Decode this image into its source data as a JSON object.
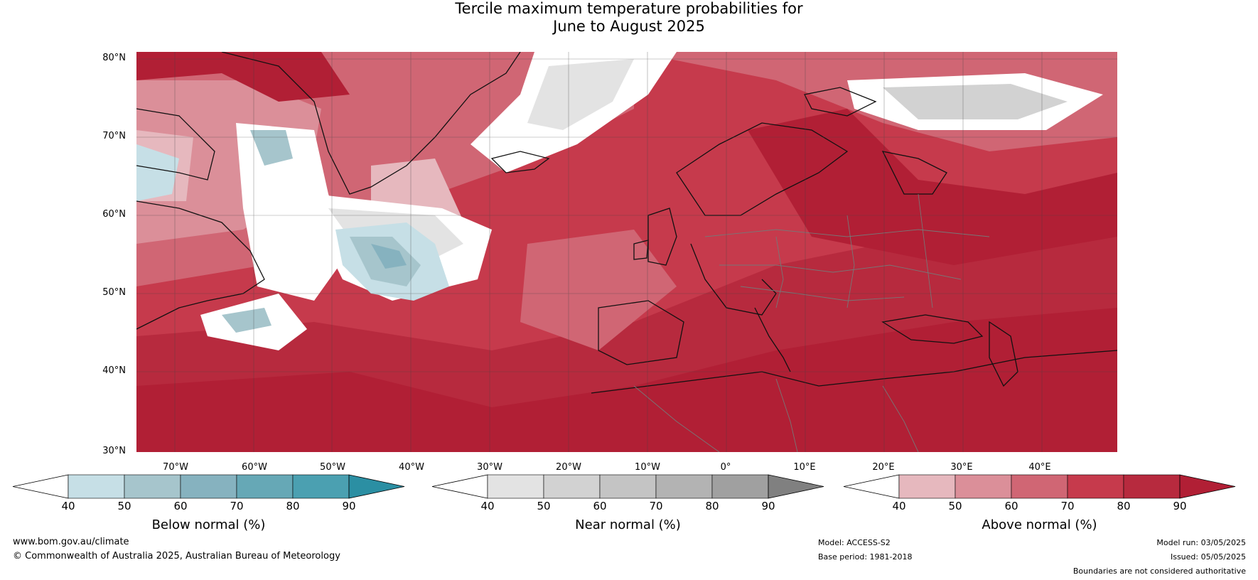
{
  "title": {
    "line1": "Tercile maximum temperature probabilities for",
    "line2": "June to August 2025"
  },
  "map": {
    "lat_labels": [
      "80°N",
      "70°N",
      "60°N",
      "50°N",
      "40°N",
      "30°N"
    ],
    "lon_labels": [
      "70°W",
      "60°W",
      "50°W",
      "40°W",
      "30°W",
      "20°W",
      "10°W",
      "0°",
      "10°E",
      "20°E",
      "30°E",
      "40°E"
    ],
    "colors": {
      "above_90": "#b11f35",
      "above_80": "#c63a4c",
      "above_70": "#d06674",
      "above_60": "#db8f99",
      "above_50": "#e6b8be",
      "near_50": "#e3e3e3",
      "near_60": "#cfcfcf",
      "below_50": "#c6dfe6",
      "below_60": "#a6c5cc",
      "below_70": "#86b2bf",
      "coastline": "#111111",
      "border": "#777777"
    }
  },
  "legends": [
    {
      "title": "Below normal (%)",
      "ticks": [
        "40",
        "50",
        "60",
        "70",
        "80",
        "90"
      ],
      "colors": [
        "#ffffff",
        "#c6dfe6",
        "#a6c5cc",
        "#86b2bf",
        "#66a8b6",
        "#4ba0b1",
        "#2b8fa3"
      ]
    },
    {
      "title": "Near normal (%)",
      "ticks": [
        "40",
        "50",
        "60",
        "70",
        "80",
        "90"
      ],
      "colors": [
        "#ffffff",
        "#e3e3e3",
        "#d2d2d2",
        "#c4c4c4",
        "#b3b3b3",
        "#a0a0a0",
        "#808080"
      ]
    },
    {
      "title": "Above normal (%)",
      "ticks": [
        "40",
        "50",
        "60",
        "70",
        "80",
        "90"
      ],
      "colors": [
        "#ffffff",
        "#e6b8be",
        "#db8f99",
        "#d06674",
        "#c63a4c",
        "#b72a3e",
        "#b11f35"
      ]
    }
  ],
  "footer": {
    "website": "www.bom.gov.au/climate",
    "copyright": "© Commonwealth of Australia 2025, Australian Bureau of Meteorology",
    "model": "Model: ACCESS-S2",
    "base_period": "Base period: 1981-2018",
    "model_run": "Model run: 03/05/2025",
    "issued": "Issued: 05/05/2025",
    "disclaimer": "Boundaries are not considered authoritative"
  }
}
